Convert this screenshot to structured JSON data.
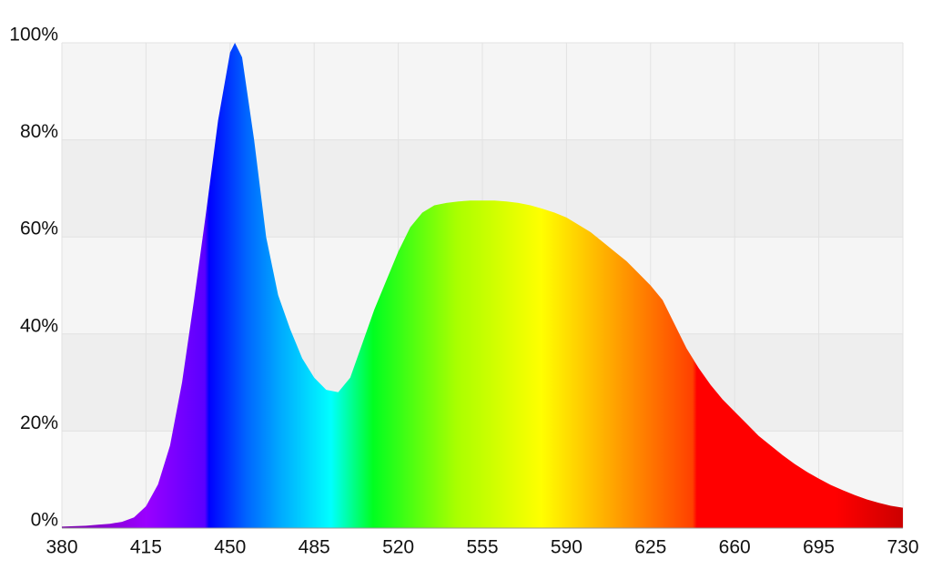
{
  "chart_data": {
    "type": "area",
    "x": [
      380,
      385,
      390,
      395,
      400,
      405,
      410,
      415,
      420,
      425,
      430,
      435,
      440,
      445,
      450,
      452,
      455,
      460,
      465,
      470,
      475,
      480,
      485,
      490,
      495,
      500,
      505,
      510,
      515,
      520,
      525,
      530,
      535,
      540,
      545,
      550,
      555,
      560,
      565,
      570,
      575,
      580,
      585,
      590,
      595,
      600,
      605,
      610,
      615,
      620,
      625,
      630,
      635,
      640,
      645,
      650,
      655,
      660,
      665,
      670,
      675,
      680,
      685,
      690,
      695,
      700,
      705,
      710,
      715,
      720,
      725,
      730
    ],
    "values": [
      0.3,
      0.4,
      0.5,
      0.7,
      0.9,
      1.3,
      2.2,
      4.5,
      9,
      17,
      30,
      47,
      65,
      84,
      98,
      100,
      97,
      80,
      60,
      48,
      41,
      35,
      31,
      28.5,
      28,
      31,
      38,
      45,
      51,
      57,
      62,
      65,
      66.5,
      67,
      67.3,
      67.5,
      67.5,
      67.5,
      67.3,
      67,
      66.5,
      65.8,
      65,
      64,
      62.5,
      61,
      59,
      57,
      55,
      52.5,
      50,
      47,
      42,
      37,
      33,
      29.5,
      26.5,
      24,
      21.5,
      19,
      17,
      15,
      13.2,
      11.6,
      10.2,
      8.9,
      7.8,
      6.8,
      5.9,
      5.2,
      4.6,
      4.2
    ],
    "xlim": [
      380,
      730
    ],
    "xticks": [
      380,
      415,
      450,
      485,
      520,
      555,
      590,
      625,
      660,
      695,
      730
    ],
    "ylim": [
      0,
      100
    ],
    "yticks": [
      {
        "value": 0,
        "label": "0%"
      },
      {
        "value": 20,
        "label": "20%"
      },
      {
        "value": 40,
        "label": "40%"
      },
      {
        "value": 60,
        "label": "60%"
      },
      {
        "value": 80,
        "label": "80%"
      },
      {
        "value": 100,
        "label": "100%"
      }
    ],
    "grid": true
  }
}
